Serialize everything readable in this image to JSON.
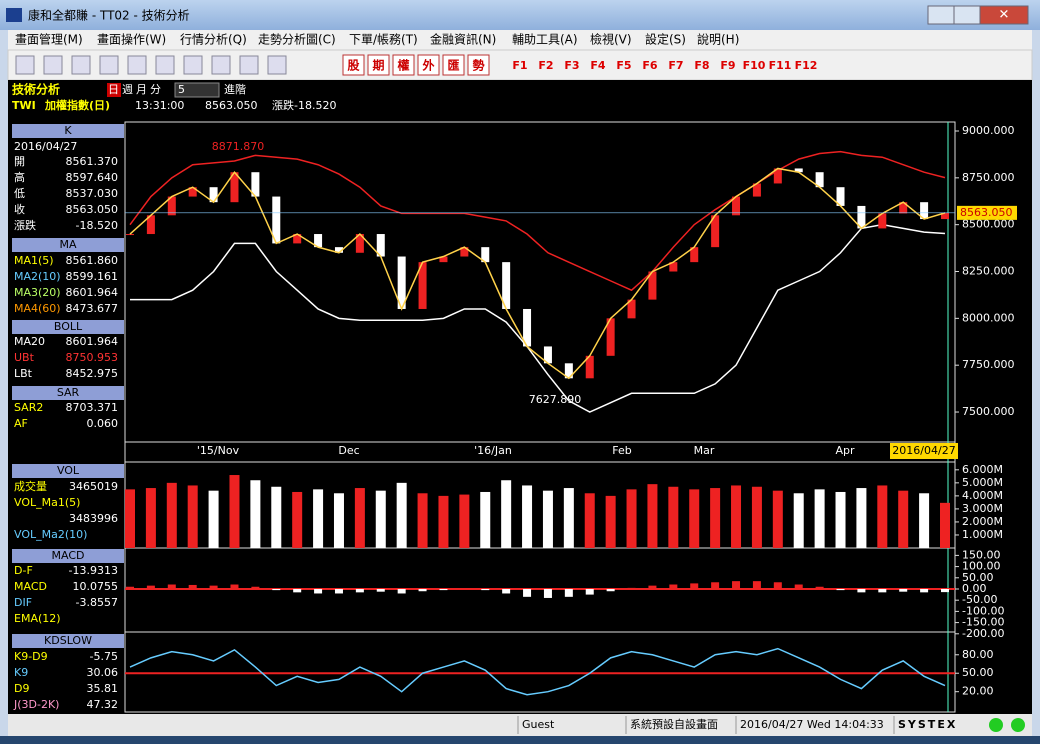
{
  "window": {
    "title": "康和全都賺 - TT02 - 技術分析"
  },
  "menu": [
    "畫面管理(M)",
    "畫面操作(W)",
    "行情分析(Q)",
    "走勢分析圖(C)",
    "下單/帳務(T)",
    "金融資訊(N)",
    "輔助工具(A)",
    "檢視(V)",
    "設定(S)",
    "說明(H)"
  ],
  "toolbar": {
    "buttons": [
      "股",
      "期",
      "權",
      "外",
      "匯",
      "勢"
    ],
    "fkeys": [
      "F1",
      "F2",
      "F3",
      "F4",
      "F5",
      "F6",
      "F7",
      "F8",
      "F9",
      "F10",
      "F11",
      "F12"
    ]
  },
  "infobar": {
    "title": "技術分析",
    "periods": [
      "日",
      "週",
      "月",
      "分"
    ],
    "count": "5",
    "advanced": "進階",
    "symbol": "TWI",
    "name": "加權指數(日)",
    "time": "13:31:00",
    "price": "8563.050",
    "change": "漲跌-18.520"
  },
  "panel": {
    "k": {
      "header": "K",
      "date": "2016/04/27",
      "rows": [
        [
          "開",
          "8561.370"
        ],
        [
          "高",
          "8597.640"
        ],
        [
          "低",
          "8537.030"
        ],
        [
          "收",
          "8563.050"
        ],
        [
          "漲跌",
          "-18.520"
        ]
      ]
    },
    "ma": {
      "header": "MA",
      "rows": [
        [
          "MA1(5)",
          "8561.860"
        ],
        [
          "MA2(10)",
          "8599.161"
        ],
        [
          "MA3(20)",
          "8601.964"
        ],
        [
          "MA4(60)",
          "8473.677"
        ]
      ]
    },
    "boll": {
      "header": "BOLL",
      "rows": [
        [
          "MA20",
          "8601.964"
        ],
        [
          "UBt",
          "8750.953"
        ],
        [
          "LBt",
          "8452.975"
        ]
      ]
    },
    "sar": {
      "header": "SAR",
      "rows": [
        [
          "SAR2",
          "8703.371"
        ],
        [
          "AF",
          "0.060"
        ]
      ]
    },
    "vol": {
      "header": "VOL",
      "rows": [
        [
          "成交量",
          "3465019"
        ],
        [
          "VOL_Ma1(5)",
          ""
        ]
      ],
      "ma1_value": "3483996",
      "ma2": "VOL_Ma2(10)"
    },
    "macd": {
      "header": "MACD",
      "rows": [
        [
          "D-F",
          "-13.9313"
        ],
        [
          "MACD",
          "10.0755"
        ],
        [
          "DIF",
          "-3.8557"
        ],
        [
          "EMA(12)",
          ""
        ]
      ]
    },
    "kd": {
      "header": "KDSLOW",
      "rows": [
        [
          "K9-D9",
          "-5.75"
        ],
        [
          "K9",
          "30.06"
        ],
        [
          "D9",
          "35.81"
        ],
        [
          "J(3D-2K)",
          "47.32"
        ]
      ]
    }
  },
  "chart": {
    "ylim": [
      7340,
      9048
    ],
    "yticks": [
      {
        "value": 9000,
        "label": "9000.000"
      },
      {
        "value": 8750,
        "label": "8750.000"
      },
      {
        "value": 8500,
        "label": "8500.000"
      },
      {
        "value": 8250,
        "label": "8250.000"
      },
      {
        "value": 8000,
        "label": "8000.000"
      },
      {
        "value": 7750,
        "label": "7750.000"
      },
      {
        "value": 7500,
        "label": "7500.000"
      }
    ],
    "xlabels": [
      "'15/Nov",
      "Dec",
      "'16/Jan",
      "Feb",
      "Mar",
      "Apr",
      "2016/04/27"
    ],
    "high_label": "8871.870",
    "low_label": "7627.890",
    "last_label": "8563.050",
    "last": 8563.05,
    "close": [
      8450,
      8550,
      8650,
      8700,
      8620,
      8780,
      8650,
      8400,
      8450,
      8380,
      8350,
      8450,
      8330,
      8050,
      8300,
      8330,
      8380,
      8300,
      8050,
      7850,
      7760,
      7680,
      7800,
      8000,
      8100,
      8250,
      8300,
      8380,
      8550,
      8650,
      8720,
      8800,
      8780,
      8700,
      8600,
      8480,
      8560,
      8620,
      8530,
      8563
    ],
    "upper": [
      8500,
      8650,
      8750,
      8820,
      8830,
      8840,
      8870,
      8860,
      8850,
      8820,
      8770,
      8700,
      8600,
      8560,
      8560,
      8560,
      8560,
      8540,
      8520,
      8450,
      8350,
      8300,
      8250,
      8200,
      8150,
      8250,
      8380,
      8500,
      8580,
      8650,
      8720,
      8790,
      8850,
      8880,
      8890,
      8870,
      8860,
      8820,
      8780,
      8751
    ],
    "lower": [
      8100,
      8100,
      8100,
      8150,
      8250,
      8400,
      8400,
      8250,
      8150,
      8050,
      8000,
      7990,
      7990,
      7990,
      7990,
      8000,
      8050,
      8050,
      7980,
      7850,
      7700,
      7560,
      7500,
      7550,
      7600,
      7600,
      7600,
      7600,
      7650,
      7750,
      7950,
      8150,
      8200,
      8250,
      8350,
      8480,
      8500,
      8480,
      8460,
      8453
    ]
  },
  "volume": {
    "ylim": [
      0,
      6600000
    ],
    "yticks": [
      {
        "value": 6000000,
        "label": "6.000M"
      },
      {
        "value": 5000000,
        "label": "5.000M"
      },
      {
        "value": 4000000,
        "label": "4.000M"
      },
      {
        "value": 3000000,
        "label": "3.000M"
      },
      {
        "value": 2000000,
        "label": "2.000M"
      },
      {
        "value": 1000000,
        "label": "1.000M"
      }
    ],
    "values": [
      4500000,
      4600000,
      5000000,
      4800000,
      4400000,
      5600000,
      5200000,
      4700000,
      4300000,
      4500000,
      4200000,
      4600000,
      4400000,
      5000000,
      4200000,
      4000000,
      4100000,
      4300000,
      5200000,
      4800000,
      4400000,
      4600000,
      4200000,
      4000000,
      4500000,
      4900000,
      4700000,
      4500000,
      4600000,
      4800000,
      4700000,
      4400000,
      4200000,
      4500000,
      4300000,
      4600000,
      4800000,
      4400000,
      4200000,
      3465019
    ]
  },
  "macd": {
    "ylim": [
      -192,
      183
    ],
    "yticks": [
      {
        "value": 150,
        "label": "150.00"
      },
      {
        "value": 100,
        "label": "100.00"
      },
      {
        "value": 50,
        "label": "50.00"
      },
      {
        "value": 0,
        "label": "0.00"
      },
      {
        "value": -50,
        "label": "-50.00"
      },
      {
        "value": -100,
        "label": "-100.00"
      },
      {
        "value": -150,
        "label": "-150.00"
      },
      {
        "value": -200,
        "label": "-200.00"
      }
    ],
    "values": [
      10,
      15,
      20,
      18,
      15,
      20,
      10,
      -5,
      -15,
      -20,
      -20,
      -15,
      -12,
      -20,
      -10,
      -5,
      0,
      -5,
      -20,
      -35,
      -40,
      -35,
      -25,
      -10,
      5,
      15,
      20,
      25,
      30,
      35,
      35,
      30,
      20,
      10,
      -5,
      -15,
      -15,
      -12,
      -15,
      -13.9313
    ]
  },
  "kd": {
    "ylim": [
      -13,
      117
    ],
    "yticks": [
      {
        "value": 80,
        "label": "80.00"
      },
      {
        "value": 50,
        "label": "50.00"
      },
      {
        "value": 20,
        "label": "20.00"
      }
    ],
    "values": [
      60,
      75,
      85,
      80,
      70,
      88,
      60,
      30,
      45,
      35,
      40,
      60,
      45,
      20,
      50,
      60,
      70,
      55,
      25,
      15,
      20,
      30,
      50,
      75,
      85,
      80,
      70,
      60,
      80,
      85,
      80,
      90,
      75,
      60,
      40,
      25,
      55,
      70,
      45,
      30.06
    ]
  },
  "status": {
    "user": "Guest",
    "layout": "系統預設自設畫面",
    "datetime": "2016/04/27 Wed 14:04:33",
    "brand": "SYSTEX"
  }
}
